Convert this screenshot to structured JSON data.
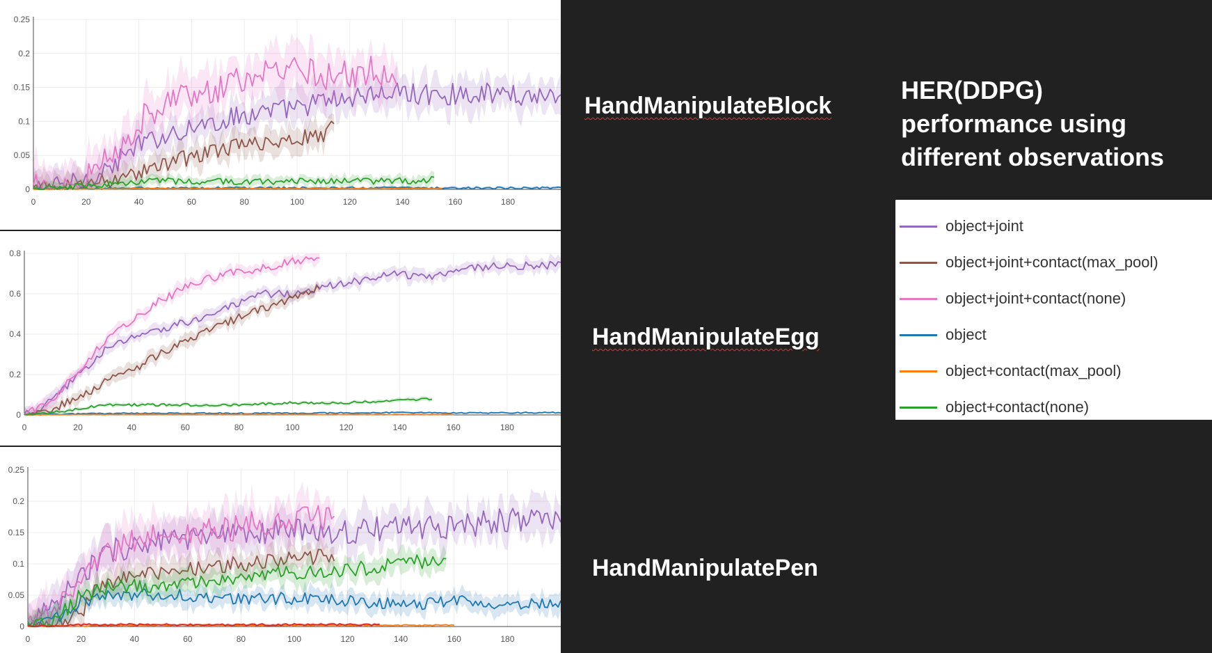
{
  "title_lines": [
    "HER(DDPG)",
    "performance using",
    "different observations"
  ],
  "colors": {
    "object+joint": "#9467bd",
    "object+joint+contact(max_pool)": "#8c564b",
    "object+joint+contact(none)": "#e377c2",
    "object": "#1f77b4",
    "object+contact(max_pool)": "#ff7f0e",
    "object+contact(none)": "#2ca02c",
    "red": "#d62728"
  },
  "legend": [
    {
      "label": "object+joint",
      "color": "#9467bd"
    },
    {
      "label": "object+joint+contact(max_pool)",
      "color": "#8c564b"
    },
    {
      "label": "object+joint+contact(none)",
      "color": "#e377c2"
    },
    {
      "label": "object",
      "color": "#1f77b4"
    },
    {
      "label": "object+contact(max_pool)",
      "color": "#ff7f0e"
    },
    {
      "label": "object+contact(none)",
      "color": "#2ca02c"
    }
  ],
  "chart_data": [
    {
      "type": "line",
      "title": "HandManipulateBlock",
      "xlim": [
        0,
        200
      ],
      "ylim": [
        0,
        0.25
      ],
      "x_ticks": [
        0,
        20,
        40,
        60,
        80,
        100,
        120,
        140,
        160,
        180
      ],
      "y_ticks": [
        0,
        0.05,
        0.1,
        0.15,
        0.2,
        0.25
      ],
      "y_tick_labels": [
        "0",
        "0.05",
        "0.1",
        "0.15",
        "0.2",
        "0.25"
      ],
      "grid": true,
      "series": [
        {
          "name": "object+joint",
          "color": "#9467bd",
          "x": [
            0,
            10,
            20,
            30,
            40,
            50,
            60,
            70,
            80,
            90,
            100,
            110,
            120,
            130,
            140,
            150,
            160,
            170,
            180,
            190,
            200
          ],
          "y": [
            0,
            0.004,
            0.015,
            0.035,
            0.065,
            0.08,
            0.092,
            0.1,
            0.11,
            0.115,
            0.12,
            0.13,
            0.135,
            0.14,
            0.142,
            0.14,
            0.14,
            0.142,
            0.14,
            0.138,
            0.14
          ],
          "noise": 0.016
        },
        {
          "name": "object+joint+contact(max_pool)",
          "color": "#8c564b",
          "x": [
            0,
            10,
            20,
            30,
            40,
            50,
            60,
            70,
            80,
            90,
            100,
            110,
            114
          ],
          "y": [
            0,
            0.003,
            0.008,
            0.015,
            0.025,
            0.038,
            0.048,
            0.058,
            0.065,
            0.07,
            0.075,
            0.082,
            0.095
          ],
          "noise": 0.012
        },
        {
          "name": "object+joint+contact(none)",
          "color": "#e377c2",
          "x": [
            0,
            10,
            20,
            30,
            40,
            50,
            60,
            70,
            80,
            90,
            100,
            110,
            120,
            130,
            138
          ],
          "y": [
            0,
            0.005,
            0.018,
            0.05,
            0.1,
            0.13,
            0.14,
            0.15,
            0.16,
            0.17,
            0.172,
            0.168,
            0.17,
            0.175,
            0.16
          ],
          "noise": 0.022
        },
        {
          "name": "object",
          "color": "#1f77b4",
          "x": [
            0,
            20,
            40,
            60,
            80,
            100,
            120,
            140,
            160,
            180,
            200
          ],
          "y": [
            0,
            0.001,
            0.002,
            0.002,
            0.002,
            0.002,
            0.002,
            0.002,
            0.002,
            0.002,
            0.002
          ],
          "noise": 0.0015
        },
        {
          "name": "object+contact(max_pool)",
          "color": "#ff7f0e",
          "x": [
            0,
            40,
            80,
            120,
            155
          ],
          "y": [
            0,
            0.001,
            0.001,
            0.001,
            0.001
          ],
          "noise": 0.0004
        },
        {
          "name": "object+contact(none)",
          "color": "#2ca02c",
          "x": [
            0,
            10,
            20,
            30,
            40,
            60,
            80,
            100,
            120,
            140,
            152
          ],
          "y": [
            0,
            0.002,
            0.004,
            0.008,
            0.012,
            0.012,
            0.012,
            0.012,
            0.012,
            0.012,
            0.014
          ],
          "noise": 0.005
        }
      ]
    },
    {
      "type": "line",
      "title": "HandManipulateEgg",
      "xlim": [
        0,
        200
      ],
      "ylim": [
        0,
        0.8
      ],
      "x_ticks": [
        0,
        20,
        40,
        60,
        80,
        100,
        120,
        140,
        160,
        180
      ],
      "y_ticks": [
        0,
        0.2,
        0.4,
        0.6,
        0.8
      ],
      "y_tick_labels": [
        "0",
        "0.2",
        "0.4",
        "0.6",
        "0.8"
      ],
      "grid": true,
      "series": [
        {
          "name": "object+joint",
          "color": "#9467bd",
          "x": [
            0,
            5,
            10,
            15,
            20,
            30,
            40,
            50,
            60,
            70,
            80,
            90,
            100,
            110,
            120,
            130,
            140,
            150,
            160,
            170,
            180,
            190,
            200
          ],
          "y": [
            0,
            0.02,
            0.07,
            0.13,
            0.2,
            0.32,
            0.38,
            0.42,
            0.46,
            0.5,
            0.55,
            0.6,
            0.6,
            0.63,
            0.65,
            0.68,
            0.7,
            0.68,
            0.72,
            0.73,
            0.74,
            0.74,
            0.74
          ],
          "noise": 0.02
        },
        {
          "name": "object+joint+contact(max_pool)",
          "color": "#8c564b",
          "x": [
            0,
            10,
            20,
            30,
            40,
            50,
            60,
            70,
            80,
            90,
            100,
            110
          ],
          "y": [
            0,
            0.03,
            0.08,
            0.16,
            0.22,
            0.3,
            0.37,
            0.43,
            0.48,
            0.53,
            0.58,
            0.63
          ],
          "noise": 0.02
        },
        {
          "name": "object+joint+contact(none)",
          "color": "#e377c2",
          "x": [
            0,
            10,
            20,
            30,
            40,
            50,
            60,
            70,
            80,
            90,
            100,
            110
          ],
          "y": [
            0,
            0.07,
            0.22,
            0.37,
            0.47,
            0.56,
            0.63,
            0.68,
            0.71,
            0.73,
            0.76,
            0.77
          ],
          "noise": 0.02
        },
        {
          "name": "object",
          "color": "#1f77b4",
          "x": [
            0,
            20,
            40,
            60,
            80,
            100,
            120,
            140,
            160,
            180,
            200
          ],
          "y": [
            0,
            0.005,
            0.008,
            0.008,
            0.008,
            0.008,
            0.01,
            0.012,
            0.01,
            0.01,
            0.012
          ],
          "noise": 0.003
        },
        {
          "name": "object+contact(max_pool)",
          "color": "#ff7f0e",
          "x": [
            0,
            40,
            80,
            120,
            160
          ],
          "y": [
            0,
            0.002,
            0.002,
            0.002,
            0.002
          ],
          "noise": 0.001
        },
        {
          "name": "object+contact(none)",
          "color": "#2ca02c",
          "x": [
            0,
            10,
            20,
            30,
            40,
            60,
            80,
            100,
            120,
            140,
            152
          ],
          "y": [
            0,
            0.01,
            0.03,
            0.05,
            0.05,
            0.05,
            0.05,
            0.06,
            0.06,
            0.07,
            0.08
          ],
          "noise": 0.006
        }
      ]
    },
    {
      "type": "line",
      "title": "HandManipulatePen",
      "xlim": [
        0,
        200
      ],
      "ylim": [
        0,
        0.25
      ],
      "x_ticks": [
        0,
        20,
        40,
        60,
        80,
        100,
        120,
        140,
        160,
        180
      ],
      "y_ticks": [
        0,
        0.05,
        0.1,
        0.15,
        0.2,
        0.25
      ],
      "y_tick_labels": [
        "0",
        "0.05",
        "0.1",
        "0.15",
        "0.2",
        "0.25"
      ],
      "grid": true,
      "series": [
        {
          "name": "object+joint",
          "color": "#9467bd",
          "x": [
            0,
            10,
            20,
            30,
            40,
            60,
            80,
            100,
            120,
            140,
            160,
            180,
            200
          ],
          "y": [
            0,
            0.03,
            0.08,
            0.12,
            0.13,
            0.14,
            0.145,
            0.155,
            0.15,
            0.16,
            0.16,
            0.17,
            0.175
          ],
          "noise": 0.02
        },
        {
          "name": "object+joint+contact(max_pool)",
          "color": "#8c564b",
          "x": [
            0,
            10,
            20,
            25,
            30,
            40,
            60,
            80,
            100,
            115
          ],
          "y": [
            0,
            0.005,
            0.02,
            0.06,
            0.07,
            0.08,
            0.09,
            0.1,
            0.11,
            0.11
          ],
          "noise": 0.013
        },
        {
          "name": "object+joint+contact(none)",
          "color": "#e377c2",
          "x": [
            0,
            10,
            20,
            30,
            40,
            60,
            80,
            100,
            115
          ],
          "y": [
            0,
            0.03,
            0.08,
            0.12,
            0.14,
            0.15,
            0.16,
            0.17,
            0.18
          ],
          "noise": 0.022
        },
        {
          "name": "object",
          "color": "#1f77b4",
          "x": [
            0,
            10,
            20,
            30,
            40,
            60,
            80,
            100,
            120,
            140,
            160,
            180,
            200
          ],
          "y": [
            0,
            0.01,
            0.04,
            0.05,
            0.05,
            0.05,
            0.045,
            0.045,
            0.04,
            0.035,
            0.04,
            0.035,
            0.04
          ],
          "noise": 0.01
        },
        {
          "name": "object+contact(max_pool)",
          "color": "#ff7f0e",
          "x": [
            0,
            40,
            80,
            120,
            160
          ],
          "y": [
            0,
            0.002,
            0.002,
            0.002,
            0.002
          ],
          "noise": 0.001
        },
        {
          "name": "object+contact(none)",
          "color": "#2ca02c",
          "x": [
            0,
            10,
            20,
            30,
            40,
            60,
            80,
            100,
            120,
            140,
            150,
            157
          ],
          "y": [
            0,
            0.01,
            0.05,
            0.06,
            0.065,
            0.07,
            0.08,
            0.085,
            0.09,
            0.1,
            0.105,
            0.11
          ],
          "noise": 0.012
        },
        {
          "name": "",
          "color": "#d62728",
          "x": [
            0,
            20,
            40,
            60,
            80,
            100,
            120,
            132
          ],
          "y": [
            0,
            0.003,
            0.003,
            0.003,
            0.003,
            0.003,
            0.003,
            0.003
          ],
          "noise": 0.0015
        }
      ]
    }
  ]
}
